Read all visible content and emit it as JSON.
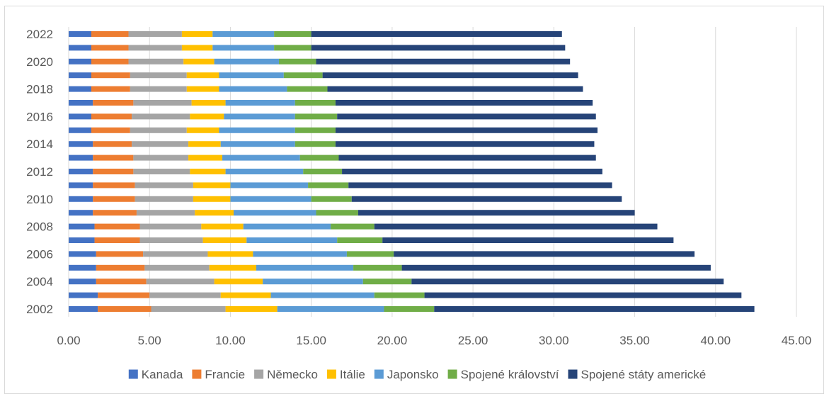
{
  "chart_data": {
    "type": "bar",
    "orientation": "horizontal",
    "stacked": true,
    "title": "",
    "xlabel": "",
    "ylabel": "",
    "xlim": [
      0,
      45
    ],
    "x_ticks": [
      "0.00",
      "5.00",
      "10.00",
      "15.00",
      "20.00",
      "25.00",
      "30.00",
      "35.00",
      "40.00",
      "45.00"
    ],
    "categories": [
      "2002",
      "2003",
      "2004",
      "2005",
      "2006",
      "2007",
      "2008",
      "2009",
      "2010",
      "2011",
      "2012",
      "2013",
      "2014",
      "2015",
      "2016",
      "2017",
      "2018",
      "2019",
      "2020",
      "2021",
      "2022"
    ],
    "visible_category_labels": [
      "2002",
      "2004",
      "2006",
      "2008",
      "2010",
      "2012",
      "2014",
      "2016",
      "2018",
      "2020",
      "2022"
    ],
    "grid": "vertical-major",
    "legend_position": "bottom",
    "series": [
      {
        "name": "Kanada",
        "color": "#4472c4",
        "values": [
          1.8,
          1.8,
          1.7,
          1.7,
          1.7,
          1.6,
          1.6,
          1.5,
          1.5,
          1.5,
          1.5,
          1.5,
          1.5,
          1.4,
          1.4,
          1.5,
          1.4,
          1.4,
          1.4,
          1.4,
          1.4
        ]
      },
      {
        "name": "Francie",
        "color": "#ed7d31",
        "values": [
          3.3,
          3.2,
          3.1,
          3.0,
          2.9,
          2.8,
          2.8,
          2.7,
          2.6,
          2.6,
          2.5,
          2.5,
          2.4,
          2.4,
          2.5,
          2.5,
          2.4,
          2.4,
          2.3,
          2.3,
          2.3
        ]
      },
      {
        "name": "Německo",
        "color": "#a5a5a5",
        "values": [
          4.6,
          4.4,
          4.2,
          4.0,
          4.0,
          3.9,
          3.8,
          3.6,
          3.6,
          3.6,
          3.5,
          3.4,
          3.5,
          3.5,
          3.6,
          3.6,
          3.5,
          3.5,
          3.4,
          3.3,
          3.3
        ]
      },
      {
        "name": "Itálie",
        "color": "#ffc000",
        "values": [
          3.2,
          3.1,
          3.0,
          2.9,
          2.8,
          2.7,
          2.6,
          2.4,
          2.3,
          2.3,
          2.2,
          2.1,
          2.0,
          2.0,
          2.1,
          2.1,
          2.0,
          2.0,
          1.9,
          1.9,
          1.9
        ]
      },
      {
        "name": "Japonsko",
        "color": "#5b9bd5",
        "values": [
          6.6,
          6.4,
          6.2,
          6.0,
          5.8,
          5.6,
          5.4,
          5.1,
          5.0,
          4.8,
          4.8,
          4.8,
          4.6,
          4.7,
          4.4,
          4.3,
          4.2,
          4.0,
          4.0,
          3.8,
          3.8
        ]
      },
      {
        "name": "Spojené království",
        "color": "#70ad47",
        "values": [
          3.1,
          3.1,
          3.0,
          3.0,
          2.9,
          2.8,
          2.7,
          2.6,
          2.5,
          2.5,
          2.4,
          2.4,
          2.5,
          2.5,
          2.6,
          2.5,
          2.5,
          2.4,
          2.3,
          2.3,
          2.3
        ]
      },
      {
        "name": "Spojené státy americké",
        "color": "#264478",
        "values": [
          19.8,
          19.6,
          19.3,
          19.1,
          18.6,
          18.0,
          17.5,
          17.1,
          16.7,
          16.3,
          16.1,
          15.9,
          16.0,
          16.2,
          16.0,
          15.9,
          15.8,
          15.8,
          15.7,
          15.7,
          15.5
        ]
      }
    ]
  }
}
